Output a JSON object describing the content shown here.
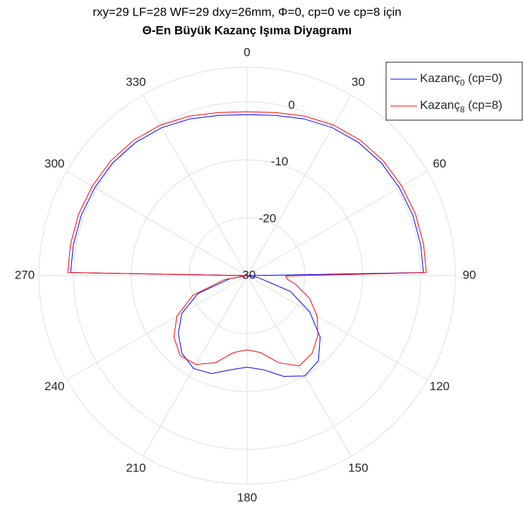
{
  "chart_data": {
    "type": "polar",
    "title": "rxy=29 LF=28 WF=29 dxy=26mm, Φ=0, cp=0 ve cp=8 için",
    "subtitle": "Θ-En Büyük Kazanç Işıma Diyagramı",
    "theta": [
      0,
      10,
      20,
      30,
      40,
      50,
      60,
      70,
      80,
      89,
      90.5,
      95,
      100,
      110,
      120,
      130,
      140,
      150,
      160,
      170,
      180,
      190,
      200,
      210,
      220,
      230,
      240,
      250,
      260,
      269.5,
      271,
      280,
      290,
      300,
      310,
      320,
      330,
      340,
      350,
      360
    ],
    "series": [
      {
        "name": "Kazanç0 (cp=0)",
        "color": "#0000ff",
        "values": [
          -2.2,
          -1.9,
          -1.2,
          -0.5,
          0,
          0.3,
          0.4,
          0.5,
          0.5,
          0.5,
          -30,
          -30,
          -28,
          -22,
          -17.5,
          -13.5,
          -10.8,
          -10,
          -11.5,
          -13.5,
          -14.2,
          -13.5,
          -12,
          -11.5,
          -12.5,
          -14.5,
          -17,
          -21,
          -27,
          -30,
          0.5,
          0.5,
          0.5,
          0.4,
          0.3,
          0,
          -0.5,
          -1.2,
          -1.9,
          -2.2
        ]
      },
      {
        "name": "Kazanç8 (cp=8)",
        "color": "#ff0000",
        "values": [
          -1.7,
          -1.4,
          -0.7,
          0,
          0.5,
          0.8,
          0.9,
          1,
          1,
          1,
          -23.3,
          -23,
          -21.5,
          -18.5,
          -16,
          -14,
          -12.5,
          -12,
          -14,
          -16.5,
          -17.2,
          -16.5,
          -14,
          -12.3,
          -12,
          -13.5,
          -16,
          -20,
          -26,
          -30,
          1,
          1,
          1,
          0.9,
          0.8,
          0.5,
          0,
          -0.7,
          -1.4,
          -1.7
        ]
      }
    ],
    "rlim": [
      -30,
      6
    ],
    "rticks": [
      -30,
      -20,
      -10,
      0
    ],
    "thetaticks": [
      0,
      30,
      60,
      90,
      120,
      150,
      180,
      210,
      240,
      270,
      300,
      330
    ],
    "grid": true,
    "legend": "top-right"
  }
}
